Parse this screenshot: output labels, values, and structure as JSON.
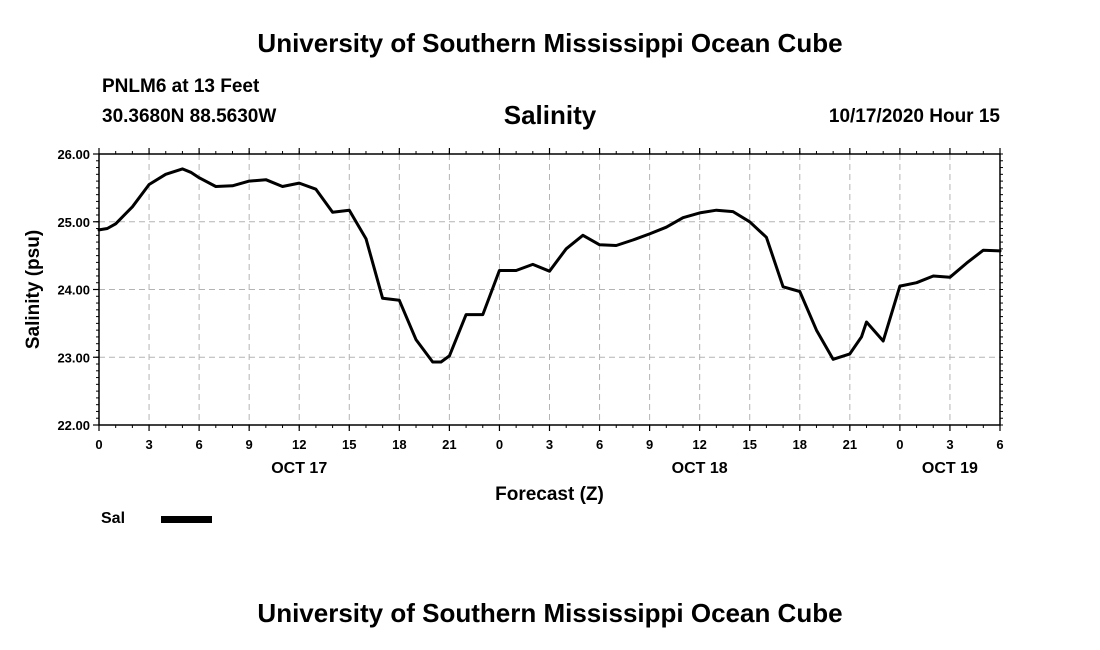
{
  "header": {
    "top_title": "University of Southern Mississippi Ocean Cube",
    "station": "PNLM6 at 13 Feet",
    "coords": "30.3680N 88.5630W",
    "chart_title": "Salinity",
    "run_time": "10/17/2020 Hour 15",
    "bottom_title": "University of Southern Mississippi Ocean Cube"
  },
  "legend": {
    "label": "Sal"
  },
  "chart_data": {
    "type": "line",
    "title": "Salinity",
    "xlabel": "Forecast (Z)",
    "ylabel": "Salinity (psu)",
    "ylim": [
      22,
      26
    ],
    "xlim": [
      0,
      54
    ],
    "x_unit": "hours from 00Z Oct 17",
    "y_ticks": [
      "22.00",
      "23.00",
      "24.00",
      "25.00",
      "26.00"
    ],
    "x_ticks": [
      "0",
      "3",
      "6",
      "9",
      "12",
      "15",
      "18",
      "21",
      "0",
      "3",
      "6",
      "9",
      "12",
      "15",
      "18",
      "21",
      "0",
      "3",
      "6"
    ],
    "date_labels": [
      {
        "label": "OCT 17",
        "hour": 12
      },
      {
        "label": "OCT 18",
        "hour": 36
      },
      {
        "label": "OCT 19",
        "hour": 51
      }
    ],
    "grid": true,
    "legend_position": "bottom-left",
    "series": [
      {
        "name": "Sal",
        "color": "#000000",
        "x": [
          0,
          0.5,
          1,
          2,
          3,
          4,
          5,
          5.5,
          6,
          7,
          8,
          9,
          10,
          11,
          12,
          13,
          14,
          15,
          16,
          17,
          18,
          19,
          20,
          20.5,
          21,
          22,
          23,
          24,
          25,
          26,
          27,
          28,
          29,
          30,
          31,
          32,
          33,
          34,
          35,
          36,
          37,
          38,
          39,
          40,
          41,
          42,
          43,
          44,
          45,
          45.7,
          46,
          47,
          48,
          49,
          50,
          51,
          52,
          53,
          54
        ],
        "y": [
          24.88,
          24.9,
          24.97,
          25.22,
          25.55,
          25.7,
          25.78,
          25.73,
          25.65,
          25.52,
          25.53,
          25.6,
          25.62,
          25.52,
          25.57,
          25.48,
          25.14,
          25.17,
          24.75,
          23.87,
          23.84,
          23.26,
          22.93,
          22.93,
          23.02,
          23.63,
          23.63,
          24.28,
          24.28,
          24.37,
          24.27,
          24.6,
          24.8,
          24.66,
          24.65,
          24.73,
          24.82,
          24.92,
          25.06,
          25.13,
          25.17,
          25.15,
          25.0,
          24.77,
          24.04,
          23.97,
          23.4,
          22.97,
          23.05,
          23.3,
          23.52,
          23.24,
          24.05,
          24.1,
          24.2,
          24.18,
          24.39,
          24.58,
          24.57
        ]
      }
    ]
  }
}
